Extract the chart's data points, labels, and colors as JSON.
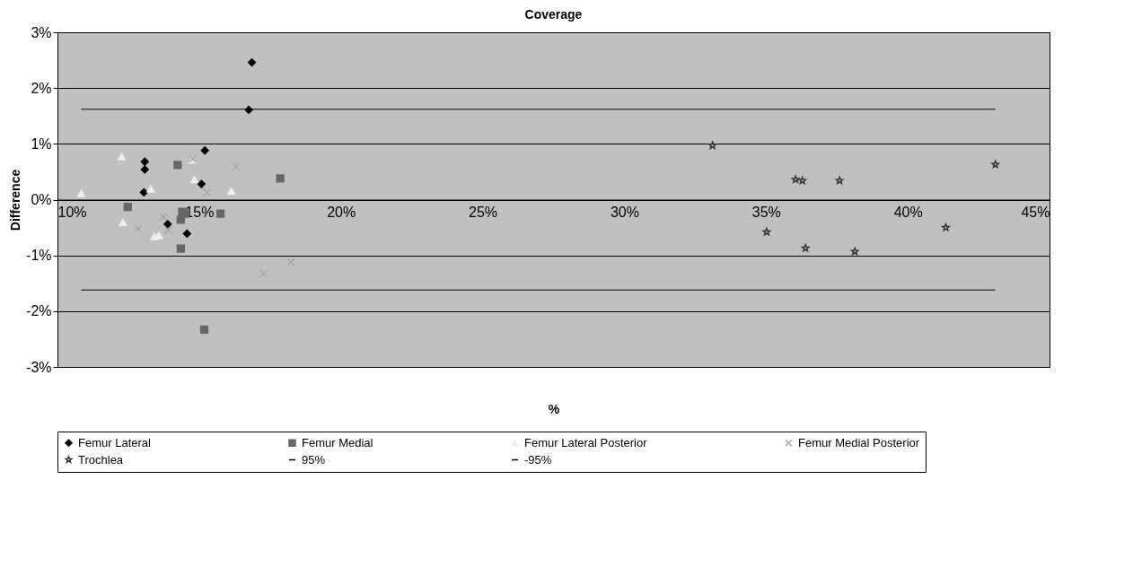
{
  "chart_data": {
    "type": "scatter",
    "title": "Coverage",
    "xlabel": "%",
    "ylabel": "Difference",
    "xlim": [
      10,
      45
    ],
    "ylim": [
      -3,
      3
    ],
    "xticks": [
      {
        "value": 10,
        "label": "10%"
      },
      {
        "value": 15,
        "label": "15%"
      },
      {
        "value": 20,
        "label": "20%"
      },
      {
        "value": 25,
        "label": "25%"
      },
      {
        "value": 30,
        "label": "30%"
      },
      {
        "value": 35,
        "label": "35%"
      },
      {
        "value": 40,
        "label": "40%"
      },
      {
        "value": 45,
        "label": "45%"
      }
    ],
    "yticks": [
      {
        "value": -3,
        "label": "-3%"
      },
      {
        "value": -2,
        "label": "-2%"
      },
      {
        "value": -1,
        "label": "-1%"
      },
      {
        "value": 0,
        "label": "0%"
      },
      {
        "value": 1,
        "label": "1%"
      },
      {
        "value": 2,
        "label": "2%"
      },
      {
        "value": 3,
        "label": "3%"
      }
    ],
    "grid": "y",
    "legend": "bottom",
    "series": [
      {
        "name": "Femur Lateral",
        "marker": "diamond",
        "color": "#000000",
        "x": [
          16.86,
          16.75,
          15.2,
          13.08,
          13.08,
          15.08,
          13.05,
          13.89,
          14.57
        ],
        "values": [
          2.46,
          1.61,
          0.88,
          0.68,
          0.54,
          0.28,
          0.13,
          -0.44,
          -0.61
        ]
      },
      {
        "name": "Femur Medial",
        "marker": "square",
        "color": "#666666",
        "x": [
          14.24,
          17.86,
          12.48,
          14.4,
          14.51,
          15.75,
          14.35,
          14.35,
          15.18
        ],
        "values": [
          0.62,
          0.38,
          -0.13,
          -0.22,
          -0.25,
          -0.25,
          -0.36,
          -0.88,
          -2.33
        ]
      },
      {
        "name": "Femur Lateral Posterior",
        "marker": "triangle",
        "color": "#eeeeee",
        "x": [
          12.26,
          14.75,
          14.83,
          13.29,
          10.84,
          16.13,
          12.31,
          13.42,
          13.58
        ],
        "values": [
          0.77,
          0.71,
          0.36,
          0.19,
          0.11,
          0.15,
          -0.41,
          -0.66,
          -0.64
        ]
      },
      {
        "name": "Femur Medial Posterior",
        "marker": "cross",
        "color": "#a6a6a6",
        "x": [
          14.77,
          16.29,
          15.28,
          13.73,
          12.84,
          13.91,
          17.27,
          18.24
        ],
        "values": [
          0.73,
          0.59,
          0.13,
          -0.31,
          -0.52,
          -0.55,
          -1.33,
          -1.12
        ]
      },
      {
        "name": "Trochlea",
        "marker": "star",
        "color": "#333333",
        "x": [
          33.11,
          36.04,
          36.28,
          37.59,
          43.09,
          35.02,
          41.34,
          36.39,
          38.13
        ],
        "values": [
          0.97,
          0.36,
          0.34,
          0.34,
          0.63,
          -0.58,
          -0.5,
          -0.87,
          -0.93
        ]
      },
      {
        "name": "95%",
        "type": "line",
        "marker": "none",
        "line_style": "solid",
        "color": "#000000",
        "x": [
          10.84,
          43.09
        ],
        "values": [
          1.62,
          1.62
        ]
      },
      {
        "name": "-95%",
        "type": "line",
        "marker": "none",
        "line_style": "solid",
        "color": "#000000",
        "x": [
          10.84,
          43.09
        ],
        "values": [
          -1.62,
          -1.62
        ]
      }
    ]
  }
}
